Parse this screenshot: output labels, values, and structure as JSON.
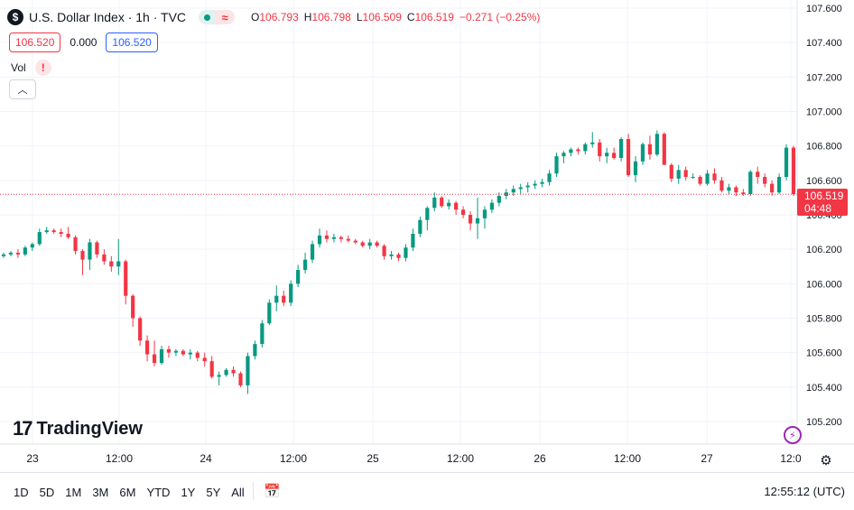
{
  "symbol": {
    "icon": "dollar-icon",
    "icon_glyph": "$",
    "title": "U.S. Dollar Index · 1h · TVC"
  },
  "ohlc": {
    "open_label": "O",
    "open": "106.793",
    "high_label": "H",
    "high": "106.798",
    "low_label": "L",
    "low": "106.509",
    "close_label": "C",
    "close": "106.519",
    "change": "−0.271 (−0.25%)"
  },
  "trade": {
    "sell": "106.520",
    "spread": "0.000",
    "buy": "106.520"
  },
  "volume": {
    "label": "Vol",
    "warning": "!"
  },
  "current_price": {
    "value": "106.519",
    "countdown": "04:48"
  },
  "logo": {
    "mark": "17",
    "text": "TradingView"
  },
  "bottom": {
    "ranges": [
      "1D",
      "5D",
      "1M",
      "3M",
      "6M",
      "YTD",
      "1Y",
      "5Y",
      "All"
    ],
    "clock": "12:55:12 (UTC)"
  },
  "colors": {
    "up": "#089981",
    "down": "#f23645",
    "grid": "#f0f3fa",
    "axis_text": "#131722",
    "accent": "#2962ff"
  },
  "chart_data": {
    "type": "candlestick",
    "title": "U.S. Dollar Index · 1h · TVC",
    "x_tick_labels": [
      "23",
      "12:00",
      "24",
      "12:00",
      "25",
      "12:00",
      "26",
      "12:00",
      "27",
      "12:0"
    ],
    "y_ticks": [
      105.2,
      105.4,
      105.6,
      105.8,
      106.0,
      106.2,
      106.4,
      106.6,
      106.8,
      107.0,
      107.2,
      107.4,
      107.6
    ],
    "y_tick_labels": [
      "105.200",
      "105.400",
      "105.600",
      "105.800",
      "106.000",
      "106.200",
      "106.400",
      "106.600",
      "106.800",
      "107.000",
      "107.200",
      "107.400",
      "107.600"
    ],
    "ylim": [
      105.13,
      107.64
    ],
    "last_price": 106.519,
    "ohlc": [
      [
        106.16,
        106.18,
        106.15,
        106.17
      ],
      [
        106.17,
        106.19,
        106.16,
        106.18
      ],
      [
        106.18,
        106.2,
        106.15,
        106.17
      ],
      [
        106.17,
        106.22,
        106.16,
        106.21
      ],
      [
        106.21,
        106.24,
        106.19,
        106.23
      ],
      [
        106.23,
        106.32,
        106.22,
        106.3
      ],
      [
        106.3,
        106.33,
        106.29,
        106.31
      ],
      [
        106.31,
        106.32,
        106.29,
        106.3
      ],
      [
        106.3,
        106.32,
        106.27,
        106.29
      ],
      [
        106.29,
        106.33,
        106.26,
        106.27
      ],
      [
        106.27,
        106.28,
        106.17,
        106.19
      ],
      [
        106.19,
        106.2,
        106.05,
        106.14
      ],
      [
        106.14,
        106.26,
        106.08,
        106.24
      ],
      [
        106.24,
        106.25,
        106.15,
        106.17
      ],
      [
        106.17,
        106.2,
        106.11,
        106.13
      ],
      [
        106.13,
        106.16,
        106.07,
        106.1
      ],
      [
        106.1,
        106.26,
        106.05,
        106.13
      ],
      [
        106.13,
        106.14,
        105.88,
        105.93
      ],
      [
        105.93,
        105.94,
        105.75,
        105.8
      ],
      [
        105.8,
        105.81,
        105.64,
        105.67
      ],
      [
        105.67,
        105.7,
        105.55,
        105.59
      ],
      [
        105.59,
        105.67,
        105.52,
        105.54
      ],
      [
        105.54,
        105.64,
        105.53,
        105.62
      ],
      [
        105.62,
        105.64,
        105.57,
        105.6
      ],
      [
        105.6,
        105.62,
        105.58,
        105.61
      ],
      [
        105.61,
        105.62,
        105.58,
        105.59
      ],
      [
        105.59,
        105.62,
        105.56,
        105.6
      ],
      [
        105.6,
        105.61,
        105.55,
        105.57
      ],
      [
        105.57,
        105.6,
        105.52,
        105.55
      ],
      [
        105.55,
        105.58,
        105.45,
        105.46
      ],
      [
        105.46,
        105.49,
        105.41,
        105.47
      ],
      [
        105.47,
        105.51,
        105.46,
        105.5
      ],
      [
        105.5,
        105.52,
        105.46,
        105.48
      ],
      [
        105.48,
        105.49,
        105.4,
        105.41
      ],
      [
        105.41,
        105.6,
        105.36,
        105.58
      ],
      [
        105.58,
        105.67,
        105.56,
        105.65
      ],
      [
        105.65,
        105.79,
        105.63,
        105.77
      ],
      [
        105.77,
        105.91,
        105.76,
        105.89
      ],
      [
        105.89,
        105.99,
        105.84,
        105.93
      ],
      [
        105.93,
        105.96,
        105.87,
        105.89
      ],
      [
        105.89,
        106.02,
        105.87,
        106.0
      ],
      [
        106.0,
        106.11,
        105.98,
        106.08
      ],
      [
        106.08,
        106.18,
        106.06,
        106.14
      ],
      [
        106.14,
        106.25,
        106.12,
        106.23
      ],
      [
        106.23,
        106.32,
        106.21,
        106.28
      ],
      [
        106.28,
        106.31,
        106.24,
        106.26
      ],
      [
        106.26,
        106.29,
        106.24,
        106.27
      ],
      [
        106.27,
        106.28,
        106.24,
        106.26
      ],
      [
        106.26,
        106.28,
        106.24,
        106.25
      ],
      [
        106.25,
        106.26,
        106.23,
        106.24
      ],
      [
        106.24,
        106.25,
        106.21,
        106.22
      ],
      [
        106.22,
        106.26,
        106.2,
        106.24
      ],
      [
        106.24,
        106.25,
        106.21,
        106.22
      ],
      [
        106.22,
        106.23,
        106.14,
        106.16
      ],
      [
        106.16,
        106.19,
        106.14,
        106.17
      ],
      [
        106.17,
        106.18,
        106.13,
        106.15
      ],
      [
        106.15,
        106.23,
        106.13,
        106.21
      ],
      [
        106.21,
        106.32,
        106.19,
        106.29
      ],
      [
        106.29,
        106.39,
        106.27,
        106.37
      ],
      [
        106.37,
        106.45,
        106.31,
        106.44
      ],
      [
        106.44,
        106.53,
        106.42,
        106.5
      ],
      [
        106.5,
        106.51,
        106.44,
        106.45
      ],
      [
        106.45,
        106.49,
        106.43,
        106.47
      ],
      [
        106.47,
        106.48,
        106.4,
        106.43
      ],
      [
        106.43,
        106.45,
        106.38,
        106.4
      ],
      [
        106.4,
        106.42,
        106.31,
        106.35
      ],
      [
        106.35,
        106.5,
        106.26,
        106.38
      ],
      [
        106.38,
        106.45,
        106.32,
        106.43
      ],
      [
        106.43,
        106.49,
        106.41,
        106.47
      ],
      [
        106.47,
        106.53,
        106.45,
        106.51
      ],
      [
        106.51,
        106.55,
        106.49,
        106.53
      ],
      [
        106.53,
        106.57,
        106.51,
        106.55
      ],
      [
        106.55,
        106.58,
        106.52,
        106.56
      ],
      [
        106.56,
        106.59,
        106.53,
        106.57
      ],
      [
        106.57,
        106.6,
        106.55,
        106.58
      ],
      [
        106.58,
        106.61,
        106.56,
        106.59
      ],
      [
        106.59,
        106.66,
        106.57,
        106.64
      ],
      [
        106.64,
        106.76,
        106.62,
        106.74
      ],
      [
        106.74,
        106.77,
        106.7,
        106.76
      ],
      [
        106.76,
        106.79,
        106.74,
        106.78
      ],
      [
        106.78,
        106.79,
        106.75,
        106.77
      ],
      [
        106.77,
        106.82,
        106.75,
        106.81
      ],
      [
        106.81,
        106.88,
        106.79,
        106.82
      ],
      [
        106.82,
        106.84,
        106.71,
        106.74
      ],
      [
        106.74,
        106.79,
        106.7,
        106.76
      ],
      [
        106.76,
        106.79,
        106.72,
        106.73
      ],
      [
        106.73,
        106.85,
        106.71,
        106.84
      ],
      [
        106.84,
        106.87,
        106.62,
        106.63
      ],
      [
        106.63,
        106.74,
        106.59,
        106.71
      ],
      [
        106.71,
        106.82,
        106.69,
        106.81
      ],
      [
        106.81,
        106.86,
        106.72,
        106.75
      ],
      [
        106.75,
        106.89,
        106.74,
        106.87
      ],
      [
        106.87,
        106.88,
        106.69,
        106.69
      ],
      [
        106.69,
        106.7,
        106.59,
        106.61
      ],
      [
        106.61,
        106.69,
        106.58,
        106.66
      ],
      [
        106.66,
        106.68,
        106.6,
        106.62
      ],
      [
        106.62,
        106.64,
        106.61,
        106.62
      ],
      [
        106.62,
        106.63,
        106.57,
        106.58
      ],
      [
        106.58,
        106.66,
        106.57,
        106.64
      ],
      [
        106.64,
        106.67,
        106.58,
        106.6
      ],
      [
        106.6,
        106.62,
        106.53,
        106.54
      ],
      [
        106.54,
        106.58,
        106.52,
        106.56
      ],
      [
        106.56,
        106.57,
        106.51,
        106.53
      ],
      [
        106.53,
        106.55,
        106.51,
        106.52
      ],
      [
        106.52,
        106.66,
        106.51,
        106.65
      ],
      [
        106.65,
        106.68,
        106.58,
        106.62
      ],
      [
        106.62,
        106.64,
        106.56,
        106.58
      ],
      [
        106.58,
        106.6,
        106.51,
        106.53
      ],
      [
        106.53,
        106.64,
        106.52,
        106.62
      ],
      [
        106.62,
        106.81,
        106.6,
        106.79
      ],
      [
        106.79,
        106.8,
        106.51,
        106.52
      ]
    ]
  }
}
